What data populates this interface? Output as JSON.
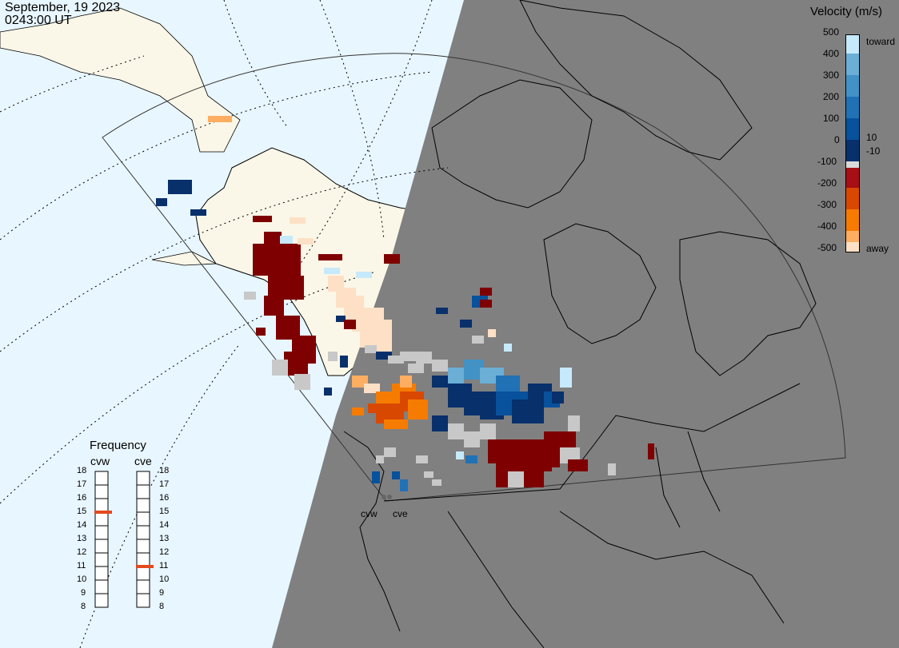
{
  "header": {
    "date": "September, 19 2023",
    "time": "0243:00 UT"
  },
  "legend": {
    "title": "Velocity (m/s)",
    "ticks": [
      "500",
      "400",
      "300",
      "200",
      "100",
      "0",
      "-100",
      "-200",
      "-300",
      "-400",
      "-500"
    ],
    "toward_label": "toward",
    "away_label": "away",
    "pos_threshold": "10",
    "neg_threshold": "-10",
    "colors": [
      "#fde0c5",
      "#fdae61",
      "#f57c00",
      "#d94801",
      "#a50f15",
      "#7f0000",
      "#d9d9d9",
      "#08306b",
      "#08519c",
      "#2171b5",
      "#4292c6",
      "#6baed6",
      "#c6e9fb"
    ]
  },
  "frequency": {
    "title": "Frequency",
    "left_label": "cvw",
    "right_label": "cve",
    "scale": [
      "18",
      "17",
      "16",
      "15",
      "14",
      "13",
      "12",
      "11",
      "10",
      "9",
      "8"
    ],
    "cvw_value": 15,
    "cve_value": 11,
    "marker_color": "#e34a1f"
  },
  "sites": {
    "west": "cvw",
    "east": "cve"
  },
  "map_colors": {
    "ocean_day": "#e8f6ff",
    "land_day": "#fbf7e8",
    "night": "#808080",
    "ground_scatter": "#c8c8c8"
  }
}
